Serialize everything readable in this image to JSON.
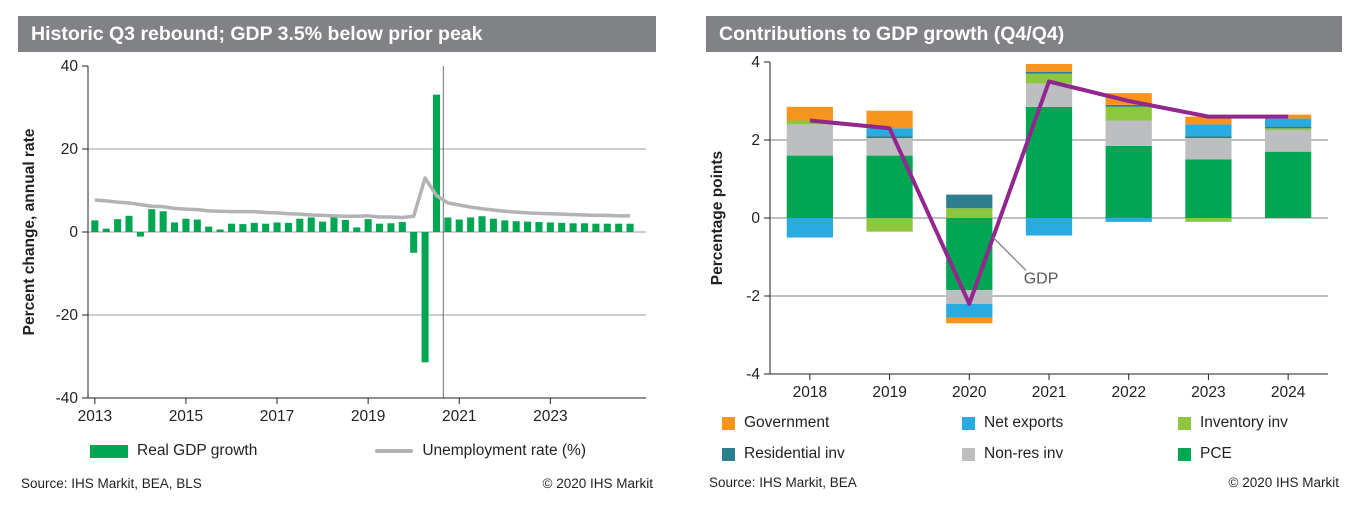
{
  "left_panel": {
    "title": "Historic Q3 rebound; GDP 3.5% below prior peak",
    "source": "Source: IHS Markit, BEA, BLS",
    "copyright": "© 2020 IHS Markit",
    "legend": [
      {
        "label": "Real GDP growth",
        "color": "#00a651",
        "swatch": "bar"
      },
      {
        "label": "Unemployment rate (%)",
        "color": "#b1b3b6",
        "swatch": "line"
      }
    ]
  },
  "right_panel": {
    "title": "Contributions to GDP growth (Q4/Q4)",
    "source": "Source: IHS Markit, BEA",
    "copyright": "© 2020 IHS Markit",
    "legend": [
      {
        "label": "Government",
        "color": "#f7941d",
        "swatch": "square"
      },
      {
        "label": "Net exports",
        "color": "#29abe2",
        "swatch": "square"
      },
      {
        "label": "Inventory inv",
        "color": "#8dc63f",
        "swatch": "square"
      },
      {
        "label": "Residential inv",
        "color": "#2d7f8e",
        "swatch": "square"
      },
      {
        "label": "Non-res inv",
        "color": "#bcbec0",
        "swatch": "square"
      },
      {
        "label": "PCE",
        "color": "#00a651",
        "swatch": "square"
      }
    ]
  },
  "chart_data": [
    {
      "type": "bar",
      "title": "Historic Q3 rebound; GDP 3.5% below prior peak",
      "ylabel": "Percent change, annual rate",
      "ylim": [
        -40,
        40
      ],
      "yticks": [
        -40,
        -20,
        0,
        20,
        40
      ],
      "grid_y": [
        -20,
        0,
        20
      ],
      "xlim": [
        2012.85,
        2025.1
      ],
      "xticks": [
        2013,
        2015,
        2017,
        2019,
        2021,
        2023
      ],
      "divider_x": 2020.65,
      "x_start": 2013.0,
      "x_step": 0.25,
      "series": [
        {
          "name": "Real GDP growth",
          "kind": "bar",
          "color": "#00a651",
          "values": [
            2.8,
            0.8,
            3.1,
            3.9,
            -1.1,
            5.5,
            5.0,
            2.3,
            3.2,
            3.0,
            1.3,
            0.6,
            2.0,
            1.9,
            2.2,
            2.0,
            2.3,
            2.2,
            3.2,
            3.5,
            2.5,
            3.5,
            2.9,
            1.1,
            3.1,
            2.0,
            2.1,
            2.4,
            -5.0,
            -31.4,
            33.1,
            3.5,
            3.0,
            3.5,
            3.8,
            3.2,
            2.8,
            2.6,
            2.5,
            2.4,
            2.3,
            2.2,
            2.1,
            2.1,
            2.0,
            2.0,
            2.0,
            2.0
          ]
        },
        {
          "name": "Unemployment rate (%)",
          "kind": "line",
          "color": "#b1b3b6",
          "values": [
            7.7,
            7.5,
            7.2,
            7.0,
            6.6,
            6.2,
            6.1,
            5.7,
            5.5,
            5.4,
            5.1,
            5.0,
            4.9,
            4.9,
            4.9,
            4.7,
            4.6,
            4.4,
            4.3,
            4.1,
            4.0,
            3.9,
            3.8,
            3.8,
            3.9,
            3.6,
            3.6,
            3.5,
            3.8,
            13.0,
            8.8,
            7.0,
            6.5,
            6.0,
            5.6,
            5.3,
            5.0,
            4.8,
            4.6,
            4.5,
            4.4,
            4.3,
            4.2,
            4.1,
            4.0,
            4.0,
            3.9,
            3.9
          ]
        }
      ]
    },
    {
      "type": "bar",
      "stacked": true,
      "title": "Contributions to GDP growth (Q4/Q4)",
      "ylabel": "Percentage points",
      "ylim": [
        -4,
        4
      ],
      "yticks": [
        -4,
        -2,
        0,
        2,
        4
      ],
      "grid_y": [
        -2,
        0,
        2
      ],
      "categories": [
        2018,
        2019,
        2020,
        2021,
        2022,
        2023,
        2024
      ],
      "series": [
        {
          "name": "PCE",
          "color": "#00a651",
          "values": [
            1.6,
            1.6,
            -1.85,
            2.85,
            1.85,
            1.5,
            1.7
          ]
        },
        {
          "name": "Non-res inv",
          "color": "#bcbec0",
          "values": [
            0.8,
            0.45,
            -0.35,
            0.6,
            0.65,
            0.55,
            0.55
          ]
        },
        {
          "name": "Inventory inv",
          "color": "#8dc63f",
          "values": [
            0.1,
            -0.35,
            0.25,
            0.25,
            0.35,
            -0.1,
            0.05
          ]
        },
        {
          "name": "Residential inv",
          "color": "#2d7f8e",
          "values": [
            0.0,
            0.05,
            0.35,
            0.05,
            0.05,
            0.05,
            0.05
          ]
        },
        {
          "name": "Net exports",
          "color": "#29abe2",
          "values": [
            -0.5,
            0.2,
            -0.35,
            -0.45,
            -0.1,
            0.3,
            0.2
          ]
        },
        {
          "name": "Government",
          "color": "#f7941d",
          "values": [
            0.35,
            0.45,
            -0.15,
            0.2,
            0.3,
            0.2,
            0.1
          ]
        }
      ],
      "line": {
        "name": "GDP",
        "color": "#92278f",
        "values": [
          2.5,
          2.3,
          -2.2,
          3.5,
          3.0,
          2.6,
          2.6
        ]
      },
      "annotation": {
        "label": "GDP",
        "text_at": [
          2.9,
          -1.55
        ],
        "point_at": [
          2.3,
          -0.5
        ]
      }
    }
  ]
}
